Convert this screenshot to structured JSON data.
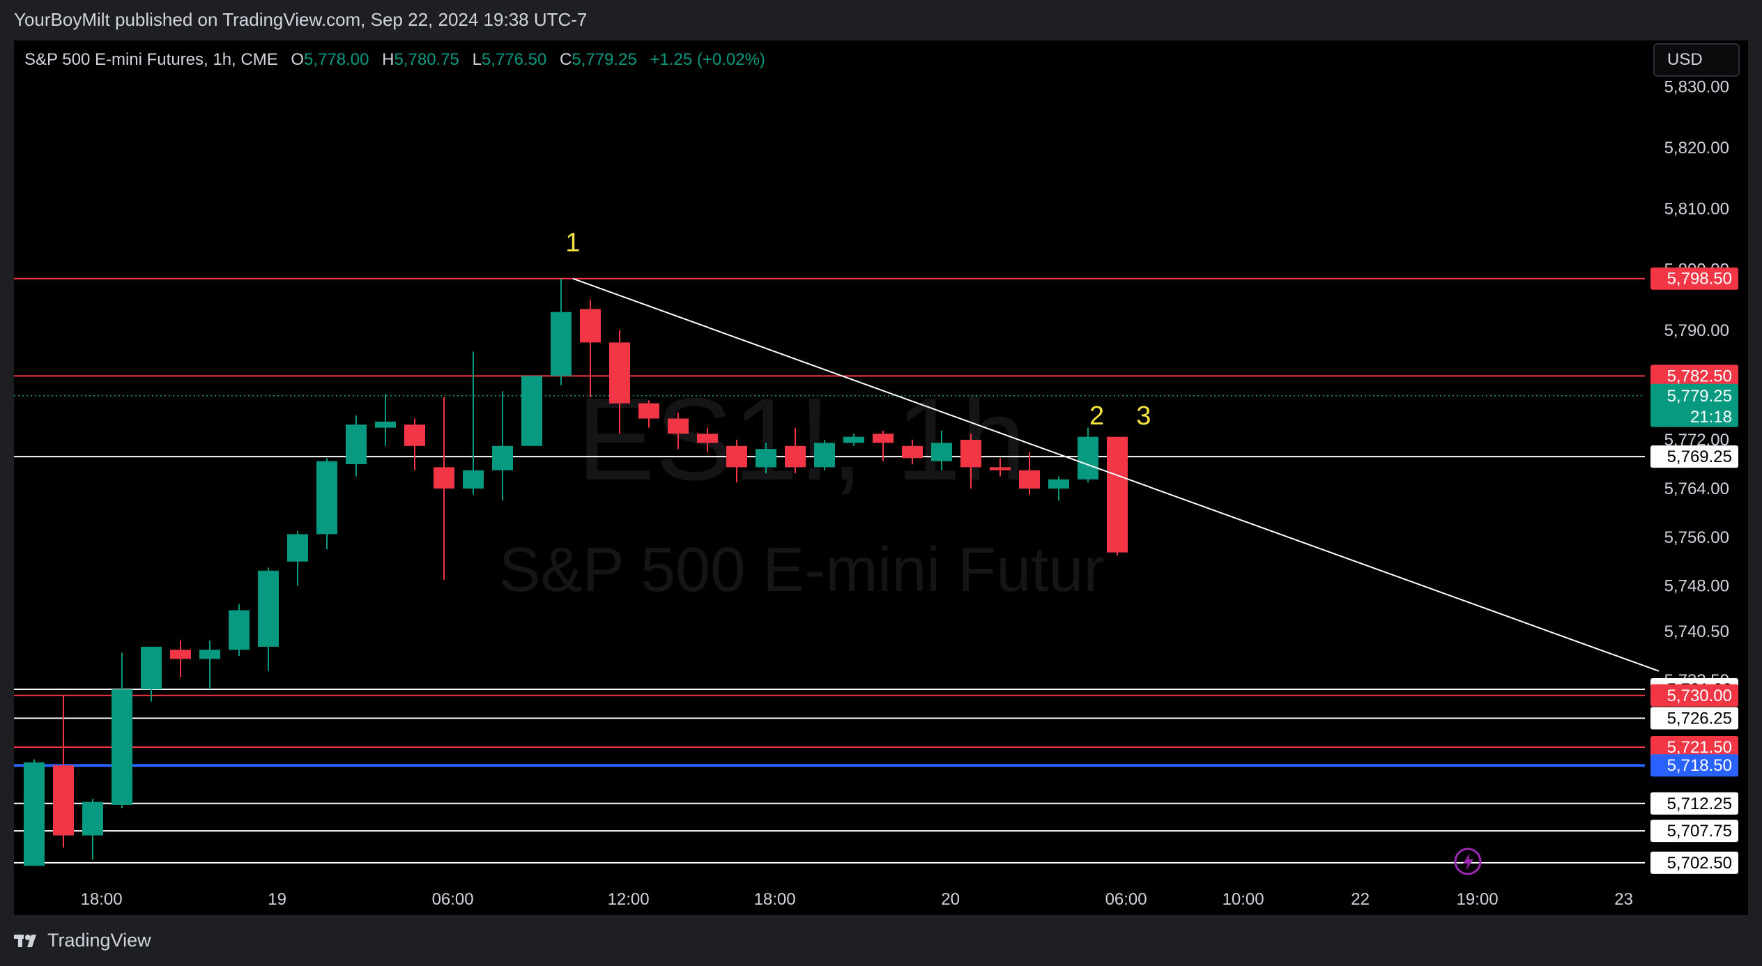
{
  "publisher": "YourBoyMilt published on TradingView.com, Sep 22, 2024 19:38 UTC-7",
  "legend": {
    "symbol": "S&P 500 E-mini Futures, 1h, CME",
    "o_label": "O",
    "o": "5,778.00",
    "h_label": "H",
    "h": "5,780.75",
    "l_label": "L",
    "l": "5,776.50",
    "c_label": "C",
    "c": "5,779.25",
    "change": "+1.25 (+0.02%)"
  },
  "currency": "USD",
  "watermark": {
    "line1": "ES1!, 1h",
    "line2": "S&P 500 E-mini Futur"
  },
  "footer": {
    "brand": "TradingView"
  },
  "colors": {
    "up": "#089981",
    "down": "#f23645",
    "background": "#000000",
    "white_line": "#ffffff",
    "red_line": "#f23645",
    "blue_line": "#2962ff",
    "annotation": "#f5e342",
    "text": "#d1d4dc"
  },
  "chart_data": {
    "type": "candlestick",
    "ylim": [
      5701,
      5835
    ],
    "y_ticks": [
      "5,830.00",
      "5,820.00",
      "5,810.00",
      "5,800.00",
      "5,790.00",
      "5,772.00",
      "5,764.00",
      "5,756.00",
      "5,748.00",
      "5,740.50",
      "5,732.50"
    ],
    "y_tick_values": [
      5830,
      5820,
      5810,
      5800,
      5790,
      5772,
      5764,
      5756,
      5748,
      5740.5,
      5732.5
    ],
    "x_ticks": [
      {
        "label": "18:00",
        "i": 2.3
      },
      {
        "label": "19",
        "i": 8.3
      },
      {
        "label": "06:00",
        "i": 14.3
      },
      {
        "label": "12:00",
        "i": 20.3
      },
      {
        "label": "18:00",
        "i": 25.3
      },
      {
        "label": "20",
        "i": 31.3
      },
      {
        "label": "06:00",
        "i": 37.3
      },
      {
        "label": "10:00",
        "i": 41.3
      },
      {
        "label": "22",
        "i": 45.3
      },
      {
        "label": "19:00",
        "i": 49.3
      },
      {
        "label": "23",
        "i": 54.3
      }
    ],
    "candles": [
      {
        "o": 5702,
        "h": 5719.5,
        "l": 5702,
        "c": 5719
      },
      {
        "o": 5718.5,
        "h": 5730,
        "l": 5705,
        "c": 5707
      },
      {
        "o": 5707,
        "h": 5713,
        "l": 5703,
        "c": 5712.5
      },
      {
        "o": 5712,
        "h": 5737,
        "l": 5711.5,
        "c": 5731
      },
      {
        "o": 5731,
        "h": 5738,
        "l": 5729,
        "c": 5738
      },
      {
        "o": 5737.5,
        "h": 5739,
        "l": 5733,
        "c": 5736
      },
      {
        "o": 5736,
        "h": 5739,
        "l": 5731,
        "c": 5737.5
      },
      {
        "o": 5737.5,
        "h": 5745,
        "l": 5736.5,
        "c": 5744
      },
      {
        "o": 5738,
        "h": 5751,
        "l": 5734,
        "c": 5750.5
      },
      {
        "o": 5752,
        "h": 5757,
        "l": 5748,
        "c": 5756.5
      },
      {
        "o": 5756.5,
        "h": 5769,
        "l": 5754,
        "c": 5768.5
      },
      {
        "o": 5768,
        "h": 5776,
        "l": 5766,
        "c": 5774.5
      },
      {
        "o": 5774,
        "h": 5779.5,
        "l": 5771,
        "c": 5775
      },
      {
        "o": 5774.5,
        "h": 5775.5,
        "l": 5767,
        "c": 5771
      },
      {
        "o": 5767.5,
        "h": 5779,
        "l": 5749,
        "c": 5764
      },
      {
        "o": 5764,
        "h": 5786.5,
        "l": 5763,
        "c": 5767
      },
      {
        "o": 5767,
        "h": 5780,
        "l": 5762,
        "c": 5771
      },
      {
        "o": 5771,
        "h": 5782.5,
        "l": 5771,
        "c": 5782.5
      },
      {
        "o": 5782.5,
        "h": 5798.5,
        "l": 5781,
        "c": 5793
      },
      {
        "o": 5793.5,
        "h": 5795,
        "l": 5779,
        "c": 5788
      },
      {
        "o": 5788,
        "h": 5790,
        "l": 5773,
        "c": 5778
      },
      {
        "o": 5778,
        "h": 5778.5,
        "l": 5774,
        "c": 5775.5
      },
      {
        "o": 5775.5,
        "h": 5776.5,
        "l": 5770.5,
        "c": 5773
      },
      {
        "o": 5773,
        "h": 5774,
        "l": 5770,
        "c": 5771.5
      },
      {
        "o": 5771,
        "h": 5772,
        "l": 5765,
        "c": 5767.5
      },
      {
        "o": 5767.5,
        "h": 5771.5,
        "l": 5766.5,
        "c": 5770.5
      },
      {
        "o": 5771,
        "h": 5774,
        "l": 5766.5,
        "c": 5767.5
      },
      {
        "o": 5767.5,
        "h": 5772,
        "l": 5767,
        "c": 5771.5
      },
      {
        "o": 5771.5,
        "h": 5773,
        "l": 5771,
        "c": 5772.5
      },
      {
        "o": 5773,
        "h": 5773.5,
        "l": 5768.5,
        "c": 5771.5
      },
      {
        "o": 5771,
        "h": 5772,
        "l": 5768,
        "c": 5769
      },
      {
        "o": 5768.5,
        "h": 5773.5,
        "l": 5767,
        "c": 5771.5
      },
      {
        "o": 5772,
        "h": 5773,
        "l": 5764,
        "c": 5767.5
      },
      {
        "o": 5767.5,
        "h": 5769,
        "l": 5766,
        "c": 5767
      },
      {
        "o": 5767,
        "h": 5770,
        "l": 5763,
        "c": 5764
      },
      {
        "o": 5764,
        "h": 5766,
        "l": 5762,
        "c": 5765.5
      },
      {
        "o": 5765.5,
        "h": 5774,
        "l": 5765,
        "c": 5772.5
      },
      {
        "o": 5772.5,
        "h": 5772.5,
        "l": 5753,
        "c": 5753.5
      }
    ],
    "trendline": {
      "from": {
        "i": 18.4,
        "v": 5798.5
      },
      "to": {
        "i": 55.5,
        "v": 5734
      }
    },
    "annotations": [
      {
        "text": "1",
        "i": 18.4,
        "v": 5803
      },
      {
        "text": "2",
        "i": 36.3,
        "v": 5774.5
      },
      {
        "text": "3",
        "i": 37.9,
        "v": 5774.5
      }
    ],
    "levels": [
      {
        "value": 5798.5,
        "label": "5,798.50",
        "kind": "red"
      },
      {
        "value": 5782.5,
        "label": "5,782.50",
        "kind": "red"
      },
      {
        "value": 5769.25,
        "label": "5,769.25",
        "kind": "white"
      },
      {
        "value": 5731,
        "label": "5,731.00",
        "kind": "white"
      },
      {
        "value": 5730,
        "label": "5,730.00",
        "kind": "red"
      },
      {
        "value": 5726.25,
        "label": "5,726.25",
        "kind": "white"
      },
      {
        "value": 5721.5,
        "label": "5,721.50",
        "kind": "red"
      },
      {
        "value": 5718.5,
        "label": "5,718.50",
        "kind": "blue"
      },
      {
        "value": 5712.25,
        "label": "5,712.25",
        "kind": "white"
      },
      {
        "value": 5707.75,
        "label": "5,707.75",
        "kind": "white"
      },
      {
        "value": 5702.5,
        "label": "5,702.50",
        "kind": "white"
      }
    ],
    "last_price": {
      "value": 5779.25,
      "label": "5,779.25",
      "countdown": "21:18"
    }
  }
}
